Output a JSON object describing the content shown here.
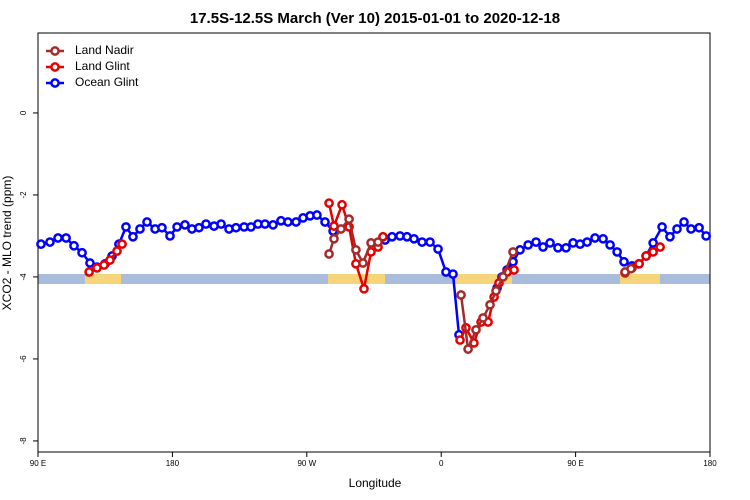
{
  "chart_data": {
    "type": "line",
    "title": "17.5S-12.5S March (Ver 10)   2015-01-01 to 2020-12-18",
    "xlabel": "Longitude",
    "ylabel": "XCO2 - MLO trend (ppm)",
    "xlim": [
      90,
      540
    ],
    "ylim": [
      -8.27,
      1.95
    ],
    "xticks": [
      {
        "value": 90,
        "label": "90 E"
      },
      180,
      {
        "value": 270,
        "label": "90 W"
      },
      {
        "value": 360,
        "label": "0"
      },
      {
        "value": 450,
        "label": "90 E"
      },
      {
        "value": 540,
        "label": "180"
      }
    ],
    "yticks": [
      0,
      -2,
      -4,
      -6,
      -8
    ],
    "legend": "top-left",
    "series": [
      {
        "name": "Land Nadir",
        "color": "#a52a2a",
        "x": [
          284.9,
          288.2,
          292.9,
          298.3,
          302.9,
          307.6,
          313.0,
          317.7,
          null,
          373.3,
          378.0,
          383.3,
          388.0,
          392.7,
          396.7,
          401.4,
          408.1,
          null,
          483.1,
          487.1
        ],
        "values": [
          -3.44,
          -3.07,
          -2.83,
          -2.59,
          -3.34,
          -3.66,
          -3.17,
          -3.15,
          null,
          -4.44,
          -5.76,
          -5.29,
          -5.0,
          -4.68,
          -4.34,
          -4.0,
          -3.39,
          null,
          -3.88,
          -3.8
        ]
      },
      {
        "name": "Land Glint",
        "color": "#e60000",
        "x": [
          124.2,
          129.5,
          134.2,
          138.2,
          142.9,
          146.3,
          null,
          284.9,
          288.2,
          293.6,
          298.3,
          302.9,
          308.3,
          313.0,
          317.7,
          321.0,
          null,
          372.6,
          376.6,
          381.9,
          386.7,
          391.4,
          395.4,
          398.7,
          404.1,
          408.8,
          null,
          483.1,
          487.8,
          492.5,
          497.2,
          501.9,
          506.6
        ],
        "values": [
          -3.88,
          -3.78,
          -3.71,
          -3.59,
          -3.37,
          -3.2,
          null,
          -2.2,
          -2.76,
          -2.24,
          -2.78,
          -3.68,
          -4.29,
          -3.39,
          -3.27,
          -3.02,
          null,
          -5.54,
          -5.24,
          -5.61,
          -5.1,
          -5.1,
          -4.49,
          -4.15,
          -3.88,
          -3.83,
          null,
          -3.9,
          -3.78,
          -3.68,
          -3.49,
          -3.39,
          -3.27
        ]
      },
      {
        "name": "Ocean Glint",
        "color": "#0000ff",
        "x": [
          92.0,
          98.0,
          103.4,
          108.8,
          114.1,
          119.5,
          124.8,
          129.5,
          134.9,
          139.6,
          144.2,
          148.9,
          153.6,
          158.3,
          163.0,
          168.4,
          173.0,
          178.4,
          183.1,
          188.4,
          193.1,
          197.8,
          202.5,
          207.9,
          212.6,
          217.9,
          222.6,
          228.0,
          232.6,
          237.3,
          242.0,
          247.4,
          252.7,
          257.4,
          262.8,
          267.5,
          272.2,
          276.8,
          282.2,
          287.6,
          null,
          322.4,
          327.1,
          332.4,
          337.1,
          341.8,
          347.2,
          352.5,
          357.9,
          363.2,
          367.9,
          371.9,
          null,
          397.4,
          400.7,
          404.1,
          408.1,
          412.8,
          418.2,
          423.5,
          428.2,
          432.9,
          438.2,
          443.6,
          448.3,
          453.0,
          457.7,
          463.0,
          468.4,
          473.1,
          477.8,
          482.4,
          487.8,
          492.5,
          497.2,
          501.9,
          507.9,
          513.2,
          517.9,
          522.6,
          527.3,
          532.7,
          537.4
        ],
        "values": [
          -3.2,
          -3.15,
          -3.05,
          -3.05,
          -3.24,
          -3.41,
          -3.66,
          -3.76,
          -3.68,
          -3.49,
          -3.2,
          -2.78,
          -3.02,
          -2.83,
          -2.66,
          -2.83,
          -2.8,
          -3.0,
          -2.78,
          -2.73,
          -2.83,
          -2.8,
          -2.71,
          -2.76,
          -2.71,
          -2.83,
          -2.8,
          -2.78,
          -2.78,
          -2.71,
          -2.71,
          -2.73,
          -2.63,
          -2.66,
          -2.66,
          -2.56,
          -2.51,
          -2.49,
          -2.66,
          -2.88,
          null,
          -3.1,
          -3.02,
          -3.0,
          -3.02,
          -3.07,
          -3.15,
          -3.15,
          -3.32,
          -3.88,
          -3.93,
          -5.41,
          null,
          -4.27,
          -4.0,
          -3.83,
          -3.63,
          -3.34,
          -3.22,
          -3.15,
          -3.27,
          -3.17,
          -3.29,
          -3.29,
          -3.17,
          -3.2,
          -3.15,
          -3.05,
          -3.07,
          -3.22,
          -3.39,
          -3.63,
          -3.73,
          -3.68,
          -3.49,
          -3.17,
          -2.78,
          -3.02,
          -2.83,
          -2.66,
          -2.83,
          -2.8,
          -3.0
        ]
      }
    ]
  }
}
